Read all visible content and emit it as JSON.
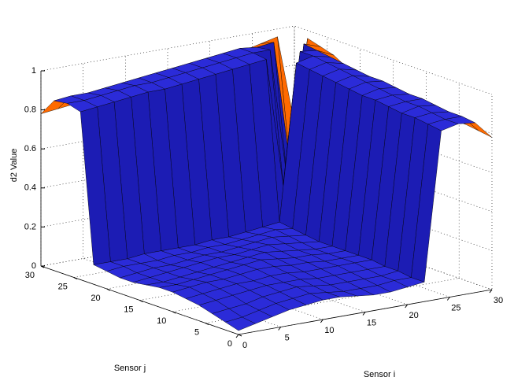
{
  "chart_data": {
    "type": "surface",
    "xlabel": "Sensor i",
    "ylabel": "Sensor j",
    "zlabel": "d2 Value",
    "x": [
      0,
      2,
      4,
      6,
      8,
      10,
      12,
      14,
      16,
      18,
      20,
      22,
      24,
      26,
      28,
      30
    ],
    "y": [
      0,
      2,
      4,
      6,
      8,
      10,
      12,
      14,
      16,
      18,
      20,
      22,
      24,
      26,
      28,
      30
    ],
    "z": [
      [
        0.02,
        0.04,
        0.06,
        0.08,
        0.09,
        0.1,
        0.1,
        0.09,
        0.08,
        0.08,
        0.09,
        0.1,
        0.86,
        0.88,
        0.87,
        0.78
      ],
      [
        0.04,
        0.05,
        0.07,
        0.09,
        0.1,
        0.11,
        0.1,
        0.09,
        0.09,
        0.09,
        0.1,
        0.1,
        0.87,
        0.88,
        0.88,
        0.79
      ],
      [
        0.06,
        0.07,
        0.08,
        0.1,
        0.11,
        0.12,
        0.11,
        0.1,
        0.1,
        0.1,
        0.1,
        0.11,
        0.88,
        0.89,
        0.88,
        0.8
      ],
      [
        0.08,
        0.09,
        0.1,
        0.11,
        0.12,
        0.12,
        0.12,
        0.11,
        0.11,
        0.11,
        0.11,
        0.11,
        0.88,
        0.9,
        0.89,
        0.8
      ],
      [
        0.09,
        0.1,
        0.11,
        0.12,
        0.12,
        0.13,
        0.13,
        0.12,
        0.12,
        0.12,
        0.12,
        0.12,
        0.89,
        0.9,
        0.9,
        0.81
      ],
      [
        0.1,
        0.11,
        0.12,
        0.12,
        0.13,
        0.14,
        0.14,
        0.13,
        0.13,
        0.12,
        0.12,
        0.12,
        0.9,
        0.91,
        0.9,
        0.81
      ],
      [
        0.1,
        0.1,
        0.11,
        0.12,
        0.13,
        0.14,
        0.15,
        0.14,
        0.13,
        0.13,
        0.12,
        0.12,
        0.9,
        0.92,
        0.91,
        0.82
      ],
      [
        0.09,
        0.09,
        0.1,
        0.11,
        0.12,
        0.13,
        0.14,
        0.15,
        0.14,
        0.13,
        0.12,
        0.12,
        0.91,
        0.93,
        0.92,
        0.82
      ],
      [
        0.08,
        0.09,
        0.1,
        0.11,
        0.12,
        0.13,
        0.13,
        0.14,
        0.15,
        0.14,
        0.13,
        0.12,
        0.92,
        0.94,
        0.92,
        0.83
      ],
      [
        0.08,
        0.09,
        0.1,
        0.1,
        0.11,
        0.12,
        0.12,
        0.13,
        0.14,
        0.15,
        0.14,
        0.13,
        0.93,
        0.95,
        0.93,
        0.84
      ],
      [
        0.09,
        0.1,
        0.1,
        0.1,
        0.11,
        0.11,
        0.12,
        0.12,
        0.13,
        0.14,
        0.15,
        0.14,
        0.94,
        0.96,
        0.94,
        0.86
      ],
      [
        0.1,
        0.1,
        0.1,
        0.11,
        0.11,
        0.11,
        0.11,
        0.12,
        0.12,
        0.13,
        0.14,
        0.15,
        0.95,
        0.97,
        0.95,
        0.88
      ],
      [
        0.86,
        0.87,
        0.88,
        0.89,
        0.9,
        0.9,
        0.91,
        0.92,
        0.93,
        0.94,
        0.95,
        0.96,
        0.3,
        0.97,
        0.96,
        0.92
      ],
      [
        0.88,
        0.88,
        0.89,
        0.9,
        0.91,
        0.91,
        0.92,
        0.93,
        0.94,
        0.95,
        0.96,
        0.97,
        0.97,
        0.3,
        0.97,
        0.94
      ],
      [
        0.87,
        0.88,
        0.88,
        0.89,
        0.9,
        0.91,
        0.92,
        0.93,
        0.94,
        0.95,
        0.96,
        0.97,
        0.96,
        0.97,
        0.3,
        0.96
      ],
      [
        0.78,
        0.79,
        0.8,
        0.8,
        0.81,
        0.81,
        0.82,
        0.82,
        0.83,
        0.84,
        0.86,
        0.88,
        0.92,
        0.94,
        0.96,
        0.5
      ]
    ],
    "xlim": [
      0,
      30
    ],
    "ylim": [
      0,
      30
    ],
    "zlim": [
      0,
      1
    ],
    "xticks": [
      0,
      5,
      10,
      15,
      20,
      25,
      30
    ],
    "yticks": [
      0,
      5,
      10,
      15,
      20,
      25,
      30
    ],
    "zticks": [
      0,
      0.2,
      0.4,
      0.6,
      0.8,
      1
    ],
    "grid": true,
    "colors": {
      "surface": "#2b2bd8",
      "wall": "#1c1cb4",
      "rim": "#ff6a00",
      "edge": "#000000"
    }
  }
}
